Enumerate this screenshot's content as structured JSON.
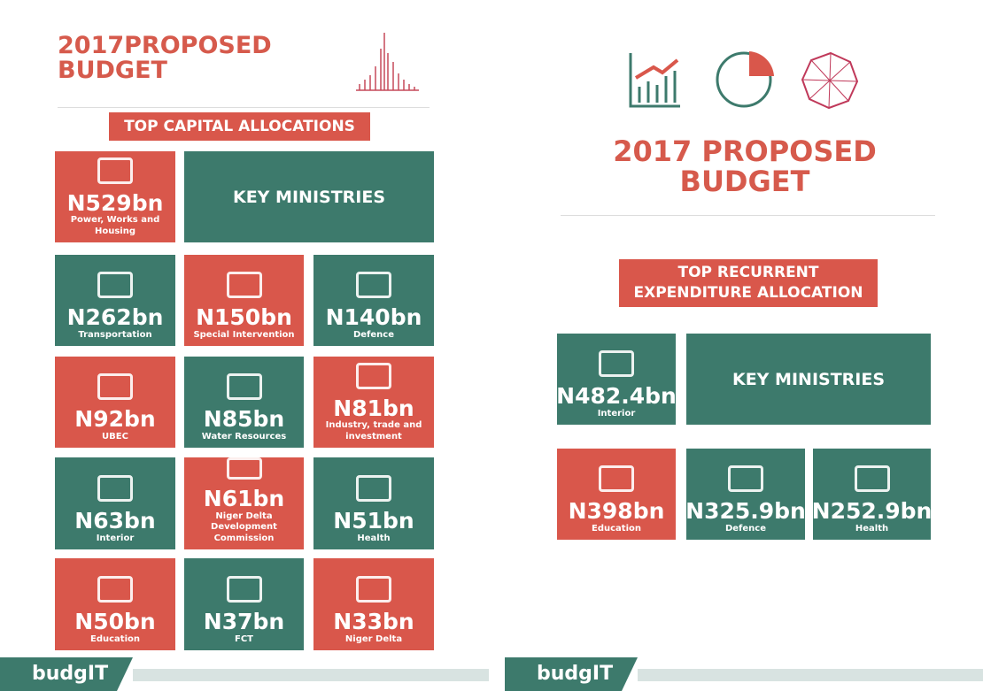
{
  "left": {
    "title": [
      "2017PROPOSED",
      "BUDGET"
    ],
    "banner": [
      "TOP CAPITAL ALLOCATIONS"
    ],
    "key_ministries": "KEY MINISTRIES",
    "logo": "budgIT",
    "tiles": [
      {
        "amount": "N529bn",
        "label": "Power, Works and Housing",
        "color": "#d9574b"
      },
      {
        "amount": "N262bn",
        "label": "Transportation",
        "color": "#3d7a6c"
      },
      {
        "amount": "N150bn",
        "label": "Special Intervention",
        "color": "#d9574b"
      },
      {
        "amount": "N140bn",
        "label": "Defence",
        "color": "#3d7a6c"
      },
      {
        "amount": "N92bn",
        "label": "UBEC",
        "color": "#d9574b"
      },
      {
        "amount": "N85bn",
        "label": "Water Resources",
        "color": "#3d7a6c"
      },
      {
        "amount": "N81bn",
        "label": "Industry, trade and investment",
        "color": "#d9574b"
      },
      {
        "amount": "N63bn",
        "label": "Interior",
        "color": "#3d7a6c"
      },
      {
        "amount": "N61bn",
        "label": "Niger Delta Development Commission",
        "color": "#d9574b"
      },
      {
        "amount": "N51bn",
        "label": "Health",
        "color": "#3d7a6c"
      },
      {
        "amount": "N50bn",
        "label": "Education",
        "color": "#d9574b"
      },
      {
        "amount": "N37bn",
        "label": "FCT",
        "color": "#3d7a6c"
      },
      {
        "amount": "N33bn",
        "label": "Niger Delta",
        "color": "#d9574b"
      }
    ]
  },
  "right": {
    "title": [
      "2017 PROPOSED",
      "BUDGET"
    ],
    "banner": [
      "TOP RECURRENT",
      "EXPENDITURE ALLOCATION"
    ],
    "key_ministries": "KEY MINISTRIES",
    "logo": "budgIT",
    "tiles": [
      {
        "amount": "N482.4bn",
        "label": "Interior",
        "color": "#3d7a6c"
      },
      {
        "amount": "N398bn",
        "label": "Education",
        "color": "#d9574b"
      },
      {
        "amount": "N325.9bn",
        "label": "Defence",
        "color": "#3d7a6c"
      },
      {
        "amount": "N252.9bn",
        "label": "Health",
        "color": "#3d7a6c"
      }
    ]
  }
}
